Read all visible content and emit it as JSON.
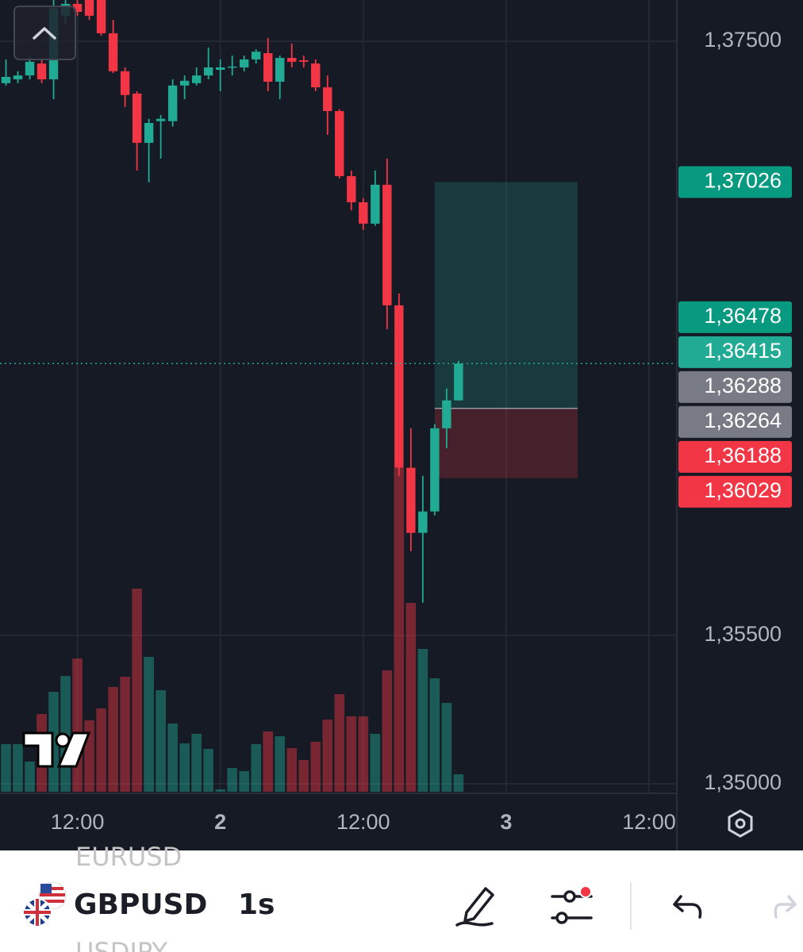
{
  "chart_data": {
    "type": "candlestick",
    "x": [
      6,
      7,
      8,
      9,
      10,
      11,
      12,
      13,
      14,
      15,
      16,
      17,
      18,
      19,
      20,
      21,
      22,
      23,
      24,
      25,
      26,
      27,
      28,
      29,
      30,
      31,
      32,
      33,
      34,
      35,
      36,
      37,
      38,
      39,
      40,
      41,
      42,
      43,
      44
    ],
    "open": [
      1.37359,
      1.37372,
      1.37385,
      1.37425,
      1.37372,
      1.37586,
      1.37626,
      1.37652,
      1.37639,
      1.37527,
      1.37399,
      1.37324,
      1.37158,
      1.37231,
      1.37231,
      1.37351,
      1.37359,
      1.37385,
      1.37404,
      1.37412,
      1.37412,
      1.37439,
      1.3746,
      1.37364,
      1.37444,
      1.37436,
      1.37425,
      1.37345,
      1.37265,
      1.37046,
      1.36958,
      1.36886,
      1.37017,
      1.36611,
      1.36064,
      1.35845,
      1.35917,
      1.36197,
      1.36291
    ],
    "high": [
      1.37439,
      1.37399,
      1.37452,
      1.37439,
      1.37666,
      1.37666,
      1.37639,
      1.37666,
      1.37652,
      1.37572,
      1.37412,
      1.37332,
      1.37239,
      1.37252,
      1.37372,
      1.37385,
      1.37412,
      1.37479,
      1.37439,
      1.37452,
      1.37452,
      1.37473,
      1.37511,
      1.37452,
      1.37492,
      1.37452,
      1.37439,
      1.37385,
      1.37271,
      1.37065,
      1.36972,
      1.37065,
      1.37105,
      1.36651,
      1.36197,
      1.36037,
      1.36211,
      1.36331,
      1.36424
    ],
    "low": [
      1.37351,
      1.37359,
      1.37372,
      1.37359,
      1.37305,
      1.37559,
      1.37586,
      1.37572,
      1.37519,
      1.37393,
      1.37279,
      1.37065,
      1.37025,
      1.37105,
      1.37213,
      1.37305,
      1.37351,
      1.37372,
      1.37332,
      1.37385,
      1.37399,
      1.37425,
      1.37332,
      1.37305,
      1.37412,
      1.37412,
      1.37332,
      1.37185,
      1.37038,
      1.36931,
      1.36865,
      1.36879,
      1.36531,
      1.36037,
      1.35783,
      1.3561,
      1.35904,
      1.3613,
      1.36291
    ],
    "close": [
      1.3738,
      1.37385,
      1.37431,
      1.37372,
      1.37612,
      1.37626,
      1.37599,
      1.37586,
      1.37527,
      1.37399,
      1.37319,
      1.37158,
      1.37225,
      1.37239,
      1.37351,
      1.37367,
      1.37385,
      1.37412,
      1.37412,
      1.37415,
      1.37439,
      1.37465,
      1.37364,
      1.37444,
      1.37431,
      1.37431,
      1.37345,
      1.37265,
      1.37046,
      1.36958,
      1.36886,
      1.37017,
      1.36611,
      1.36064,
      1.35845,
      1.35917,
      1.36197,
      1.36291,
      1.36415
    ],
    "volume": [
      60,
      60,
      38,
      98,
      126,
      146,
      168,
      90,
      105,
      132,
      145,
      256,
      170,
      128,
      86,
      61,
      73,
      54,
      3,
      30,
      26,
      60,
      76,
      70,
      55,
      40,
      63,
      91,
      123,
      95,
      95,
      73,
      153,
      408,
      238,
      180,
      143,
      112,
      22
    ],
    "up_color": "#22ab94",
    "down_color": "#f23645",
    "xlim": [
      5.5,
      62.33
    ],
    "ylim": [
      1.34968,
      1.37639
    ],
    "xticks": [
      {
        "value": 12,
        "label": "12:00"
      },
      {
        "value": 24,
        "label": "2"
      },
      {
        "value": 36,
        "label": "12:00"
      },
      {
        "value": 48,
        "label": "3"
      },
      {
        "value": 60,
        "label": "12:00"
      }
    ],
    "yticks": [
      {
        "value": 1.375,
        "label": "1,37500"
      },
      {
        "value": 1.355,
        "label": "1,35500"
      },
      {
        "value": 1.35,
        "label": "1,35000"
      }
    ],
    "grid": true,
    "current_price": 1.36415,
    "position": {
      "start": 42,
      "end": 54,
      "target": 1.37026,
      "entry": 1.36264,
      "stop": 1.36029
    },
    "price_labels": [
      {
        "value": 1.37026,
        "label": "1,37026",
        "color": "#089981"
      },
      {
        "value": 1.36478,
        "label": "1,36478",
        "color": "#089981"
      },
      {
        "value": 1.36415,
        "label": "1,36415",
        "color": "#22ab94"
      },
      {
        "value": 1.36288,
        "label": "1,36288",
        "color": "#787b86"
      },
      {
        "value": 1.36264,
        "label": "1,36264",
        "color": "#787b86"
      },
      {
        "value": 1.36188,
        "label": "1,36188",
        "color": "#f23645"
      },
      {
        "value": 1.36029,
        "label": "1,36029",
        "color": "#f23645"
      }
    ]
  },
  "toolbar": {
    "symbols": [
      "EURUSD",
      "GBPUSD",
      "USDJPY"
    ],
    "interval": "1s"
  }
}
